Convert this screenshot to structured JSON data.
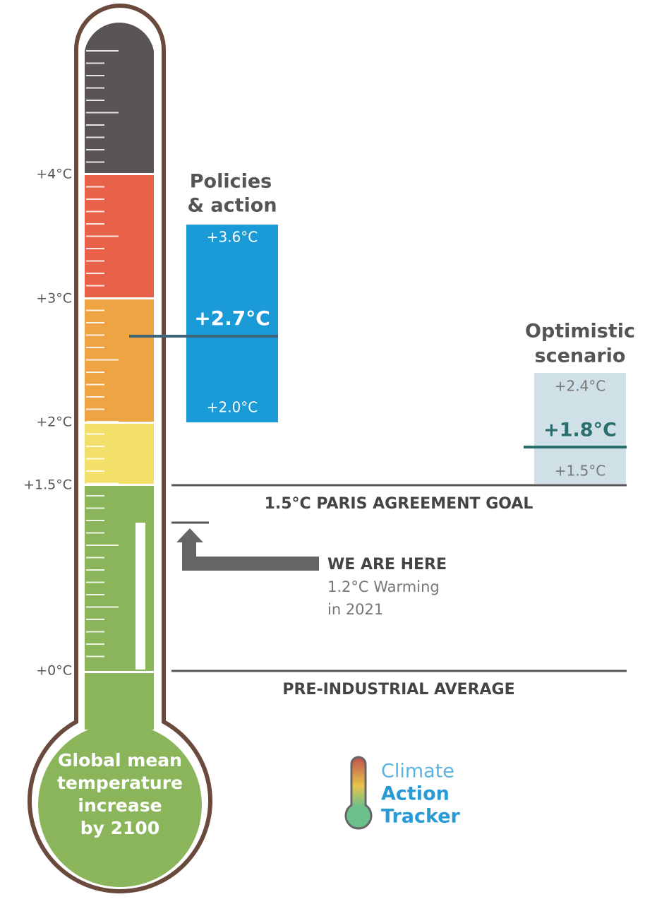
{
  "axis_labels": [
    "+4°C",
    "+3°C",
    "+2°C",
    "+1.5°C",
    "+0°C"
  ],
  "policies": {
    "title_lines": [
      "Policies",
      "& action"
    ],
    "high": "+3.6°C",
    "mid": "+2.7°C",
    "low": "+2.0°C"
  },
  "optimistic": {
    "title_lines": [
      "Optimistic",
      "scenario"
    ],
    "high": "+2.4°C",
    "mid": "+1.8°C",
    "low": "+1.5°C"
  },
  "paris_goal": "1.5°C PARIS AGREEMENT GOAL",
  "here": {
    "title": "WE ARE HERE",
    "lines": [
      "1.2°C Warming",
      "in 2021"
    ]
  },
  "pre_industrial": "PRE-INDUSTRIAL AVERAGE",
  "bulb_lines": [
    "Global mean",
    "temperature",
    "increase",
    "by 2100"
  ],
  "logo": [
    "Climate",
    "Action",
    "Tracker"
  ]
}
